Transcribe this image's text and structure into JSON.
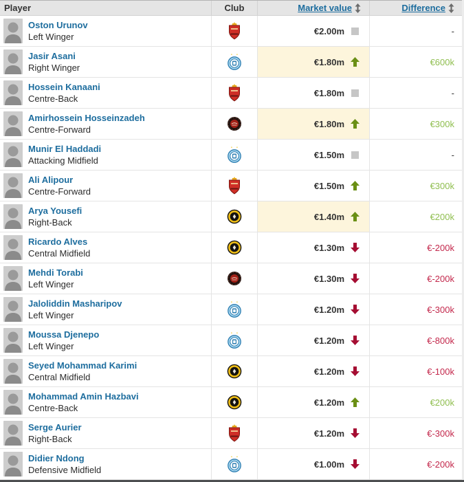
{
  "table": {
    "columns": {
      "player": "Player",
      "club": "Club",
      "market_value": "Market value",
      "difference": "Difference"
    },
    "sortable_columns": [
      "Market value",
      "Difference"
    ],
    "rows": [
      {
        "name": "Oston Urunov",
        "position": "Left Winger",
        "club_icon": "red-shield-club-badge",
        "market_value": "€2.00m",
        "trend_icon": "gray-unchanged-square-icon",
        "difference": "-",
        "diff_type": "neutral",
        "highlight": false
      },
      {
        "name": "Jasir Asani",
        "position": "Right Winger",
        "club_icon": "blue-round-club-badge",
        "market_value": "€1.80m",
        "trend_icon": "green-up-arrow-icon",
        "difference": "€600k",
        "diff_type": "positive",
        "highlight": true
      },
      {
        "name": "Hossein Kanaani",
        "position": "Centre-Back",
        "club_icon": "red-shield-club-badge",
        "market_value": "€1.80m",
        "trend_icon": "gray-unchanged-square-icon",
        "difference": "-",
        "diff_type": "neutral",
        "highlight": false
      },
      {
        "name": "Amirhossein Hosseinzadeh",
        "position": "Centre-Forward",
        "club_icon": "dark-red-round-club-badge",
        "market_value": "€1.80m",
        "trend_icon": "green-up-arrow-icon",
        "difference": "€300k",
        "diff_type": "positive",
        "highlight": true
      },
      {
        "name": "Munir El Haddadi",
        "position": "Attacking Midfield",
        "club_icon": "blue-round-club-badge",
        "market_value": "€1.50m",
        "trend_icon": "gray-unchanged-square-icon",
        "difference": "-",
        "diff_type": "neutral",
        "highlight": false
      },
      {
        "name": "Ali Alipour",
        "position": "Centre-Forward",
        "club_icon": "red-shield-club-badge",
        "market_value": "€1.50m",
        "trend_icon": "green-up-arrow-icon",
        "difference": "€300k",
        "diff_type": "positive",
        "highlight": false
      },
      {
        "name": "Arya Yousefi",
        "position": "Right-Back",
        "club_icon": "black-gold-round-club-badge",
        "market_value": "€1.40m",
        "trend_icon": "green-up-arrow-icon",
        "difference": "€200k",
        "diff_type": "positive",
        "highlight": true
      },
      {
        "name": "Ricardo Alves",
        "position": "Central Midfield",
        "club_icon": "black-gold-round-club-badge",
        "market_value": "€1.30m",
        "trend_icon": "red-down-arrow-icon",
        "difference": "€-200k",
        "diff_type": "negative",
        "highlight": false
      },
      {
        "name": "Mehdi Torabi",
        "position": "Left Winger",
        "club_icon": "dark-red-round-club-badge",
        "market_value": "€1.30m",
        "trend_icon": "red-down-arrow-icon",
        "difference": "€-200k",
        "diff_type": "negative",
        "highlight": false
      },
      {
        "name": "Jaloliddin Masharipov",
        "position": "Left Winger",
        "club_icon": "blue-round-club-badge",
        "market_value": "€1.20m",
        "trend_icon": "red-down-arrow-icon",
        "difference": "€-300k",
        "diff_type": "negative",
        "highlight": false
      },
      {
        "name": "Moussa Djenepo",
        "position": "Left Winger",
        "club_icon": "blue-round-club-badge",
        "market_value": "€1.20m",
        "trend_icon": "red-down-arrow-icon",
        "difference": "€-800k",
        "diff_type": "negative",
        "highlight": false
      },
      {
        "name": "Seyed Mohammad Karimi",
        "position": "Central Midfield",
        "club_icon": "black-gold-round-club-badge",
        "market_value": "€1.20m",
        "trend_icon": "red-down-arrow-icon",
        "difference": "€-100k",
        "diff_type": "negative",
        "highlight": false
      },
      {
        "name": "Mohammad Amin Hazbavi",
        "position": "Centre-Back",
        "club_icon": "black-gold-round-club-badge",
        "market_value": "€1.20m",
        "trend_icon": "green-up-arrow-icon",
        "difference": "€200k",
        "diff_type": "positive",
        "highlight": false
      },
      {
        "name": "Serge Aurier",
        "position": "Right-Back",
        "club_icon": "red-shield-club-badge",
        "market_value": "€1.20m",
        "trend_icon": "red-down-arrow-icon",
        "difference": "€-300k",
        "diff_type": "negative",
        "highlight": false
      },
      {
        "name": "Didier Ndong",
        "position": "Defensive Midfield",
        "club_icon": "blue-round-club-badge",
        "market_value": "€1.00m",
        "trend_icon": "red-down-arrow-icon",
        "difference": "€-200k",
        "diff_type": "negative",
        "highlight": false
      }
    ]
  },
  "colors": {
    "link_blue": "#1d6d9e",
    "positive_green_text": "#8fbe4f",
    "up_arrow_green": "#6a8f14",
    "negative_red_text": "#c3274b",
    "down_arrow_red": "#a50d32",
    "unchanged_gray": "#c6c6c6",
    "highlight_yellow": "#fdf5dc",
    "header_bg": "#e5e5e5"
  }
}
